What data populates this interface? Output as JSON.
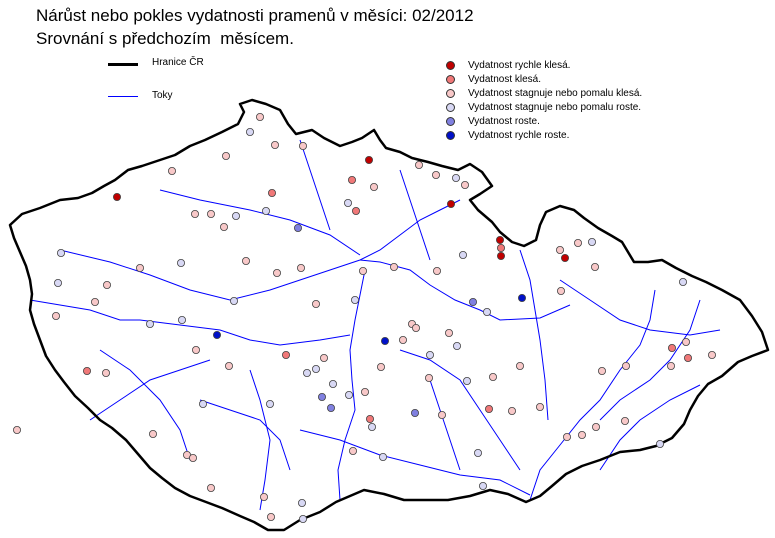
{
  "title": "Nárůst nebo pokles vydatnosti pramenů v měsíci: 02/2012",
  "subtitle": "Srovnání s předchozím  měsícem.",
  "line_legend": [
    {
      "label": "Hranice ČR",
      "color": "#000000"
    },
    {
      "label": "Toky",
      "color": "#0000ff"
    }
  ],
  "point_legend": [
    {
      "key": "r",
      "label": "Vydatnost rychle klesá.",
      "color": "#c00000"
    },
    {
      "key": "s",
      "label": "Vydatnost klesá.",
      "color": "#f07878"
    },
    {
      "key": "p",
      "label": "Vydatnost stagnuje nebo pomalu klesá.",
      "color": "#f8c8c8"
    },
    {
      "key": "l",
      "label": "Vydatnost stagnuje nebo pomalu roste.",
      "color": "#d8d8f4"
    },
    {
      "key": "m",
      "label": "Vydatnost roste.",
      "color": "#8080e0"
    },
    {
      "key": "b",
      "label": "Vydatnost rychle roste.",
      "color": "#0010c8"
    }
  ]
}
